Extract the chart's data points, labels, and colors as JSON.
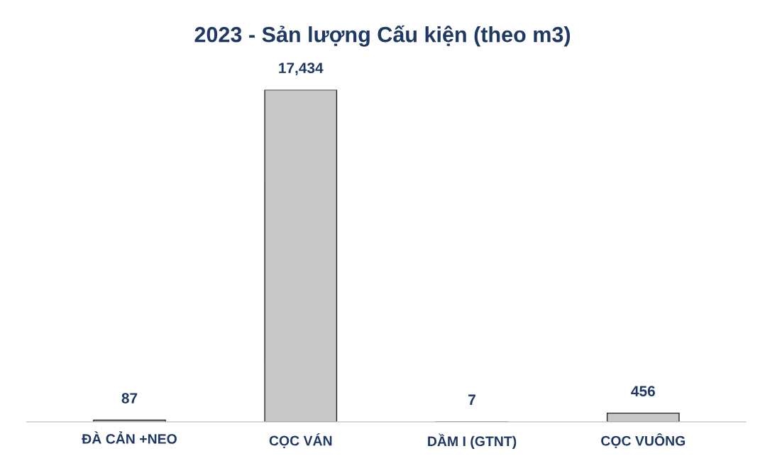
{
  "chart_data": {
    "type": "bar",
    "title": "2023 - Sản lượng Cấu kiện (theo m3)",
    "categories": [
      "ĐÀ CẢN +NEO",
      "CỌC VÁN",
      "DẦM I (GTNT)",
      "CỌC VUÔNG"
    ],
    "values": [
      87,
      17434,
      7,
      456
    ],
    "value_labels": [
      "87",
      "17,434",
      "7",
      "456"
    ],
    "color": "#c8c8c8",
    "grid": false,
    "legend": false
  }
}
